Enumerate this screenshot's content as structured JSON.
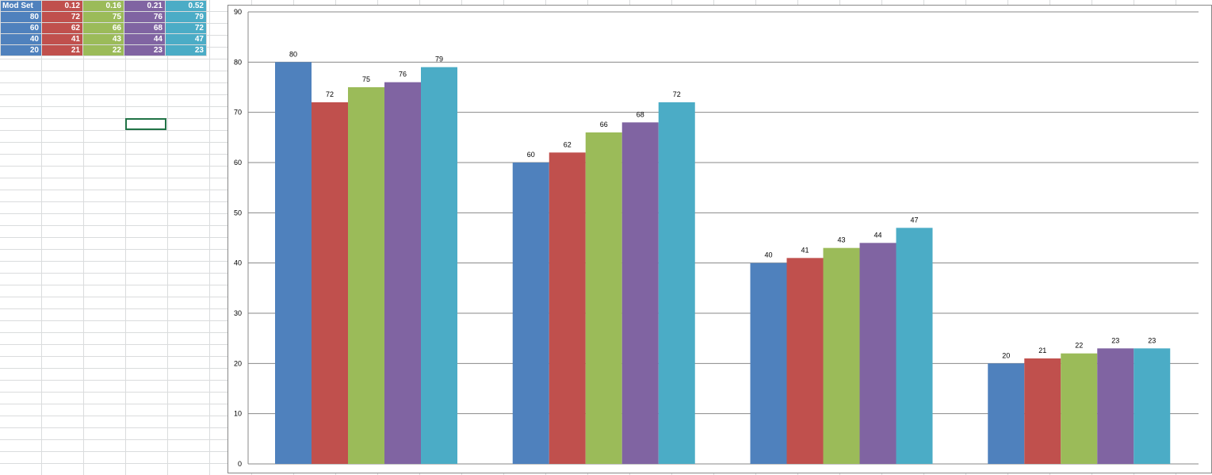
{
  "table": {
    "header": [
      "Mod Set",
      0.12,
      0.16,
      0.21,
      0.52
    ],
    "rows": [
      [
        80,
        72,
        75,
        76,
        79
      ],
      [
        60,
        62,
        66,
        68,
        72
      ],
      [
        40,
        41,
        43,
        44,
        47
      ],
      [
        20,
        21,
        22,
        23,
        23
      ]
    ]
  },
  "chart_data": {
    "type": "bar",
    "categories": [
      null,
      null,
      null,
      null
    ],
    "series": [
      {
        "color": "#4f81bd",
        "values": [
          80,
          60,
          40,
          20
        ]
      },
      {
        "color": "#c0504d",
        "values": [
          72,
          62,
          41,
          21
        ]
      },
      {
        "color": "#9bbb59",
        "values": [
          75,
          66,
          43,
          22
        ]
      },
      {
        "color": "#8064a2",
        "values": [
          76,
          68,
          44,
          23
        ]
      },
      {
        "color": "#4bacc6",
        "values": [
          79,
          72,
          47,
          23
        ]
      }
    ],
    "ylim": [
      0,
      90
    ],
    "yticks": [
      0,
      10,
      20,
      30,
      40,
      50,
      60,
      70,
      80,
      90
    ],
    "grid": true
  }
}
